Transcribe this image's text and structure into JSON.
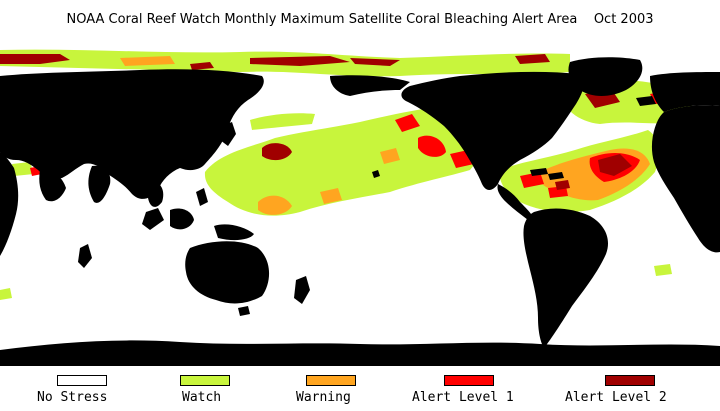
{
  "title": "NOAA Coral Reef Watch Monthly Maximum Satellite Coral Bleaching Alert Area",
  "date": "Oct 2003",
  "legend": [
    {
      "label": "No Stress",
      "color": "#ffffff"
    },
    {
      "label": "Watch",
      "color": "#c8f53c"
    },
    {
      "label": "Warning",
      "color": "#ffa520"
    },
    {
      "label": "Alert Level 1",
      "color": "#ff0000"
    },
    {
      "label": "Alert Level 2",
      "color": "#a00000"
    }
  ],
  "colors": {
    "land": "#000000",
    "ocean": "#ffffff"
  }
}
